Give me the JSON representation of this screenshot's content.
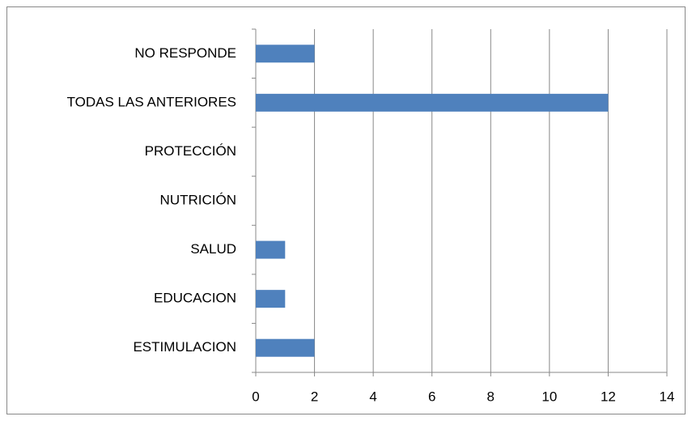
{
  "chart_data": {
    "type": "bar",
    "orientation": "horizontal",
    "categories": [
      "ESTIMULACION",
      "EDUCACION",
      "SALUD",
      "NUTRICIÓN",
      "PROTECCIÓN",
      "TODAS LAS ANTERIORES",
      "NO RESPONDE"
    ],
    "values": [
      2,
      1,
      1,
      0,
      0,
      12,
      2
    ],
    "color": "#4f81bd",
    "xlim": [
      0,
      14
    ],
    "xticks": [
      0,
      2,
      4,
      6,
      8,
      10,
      12,
      14
    ],
    "grid": true
  }
}
